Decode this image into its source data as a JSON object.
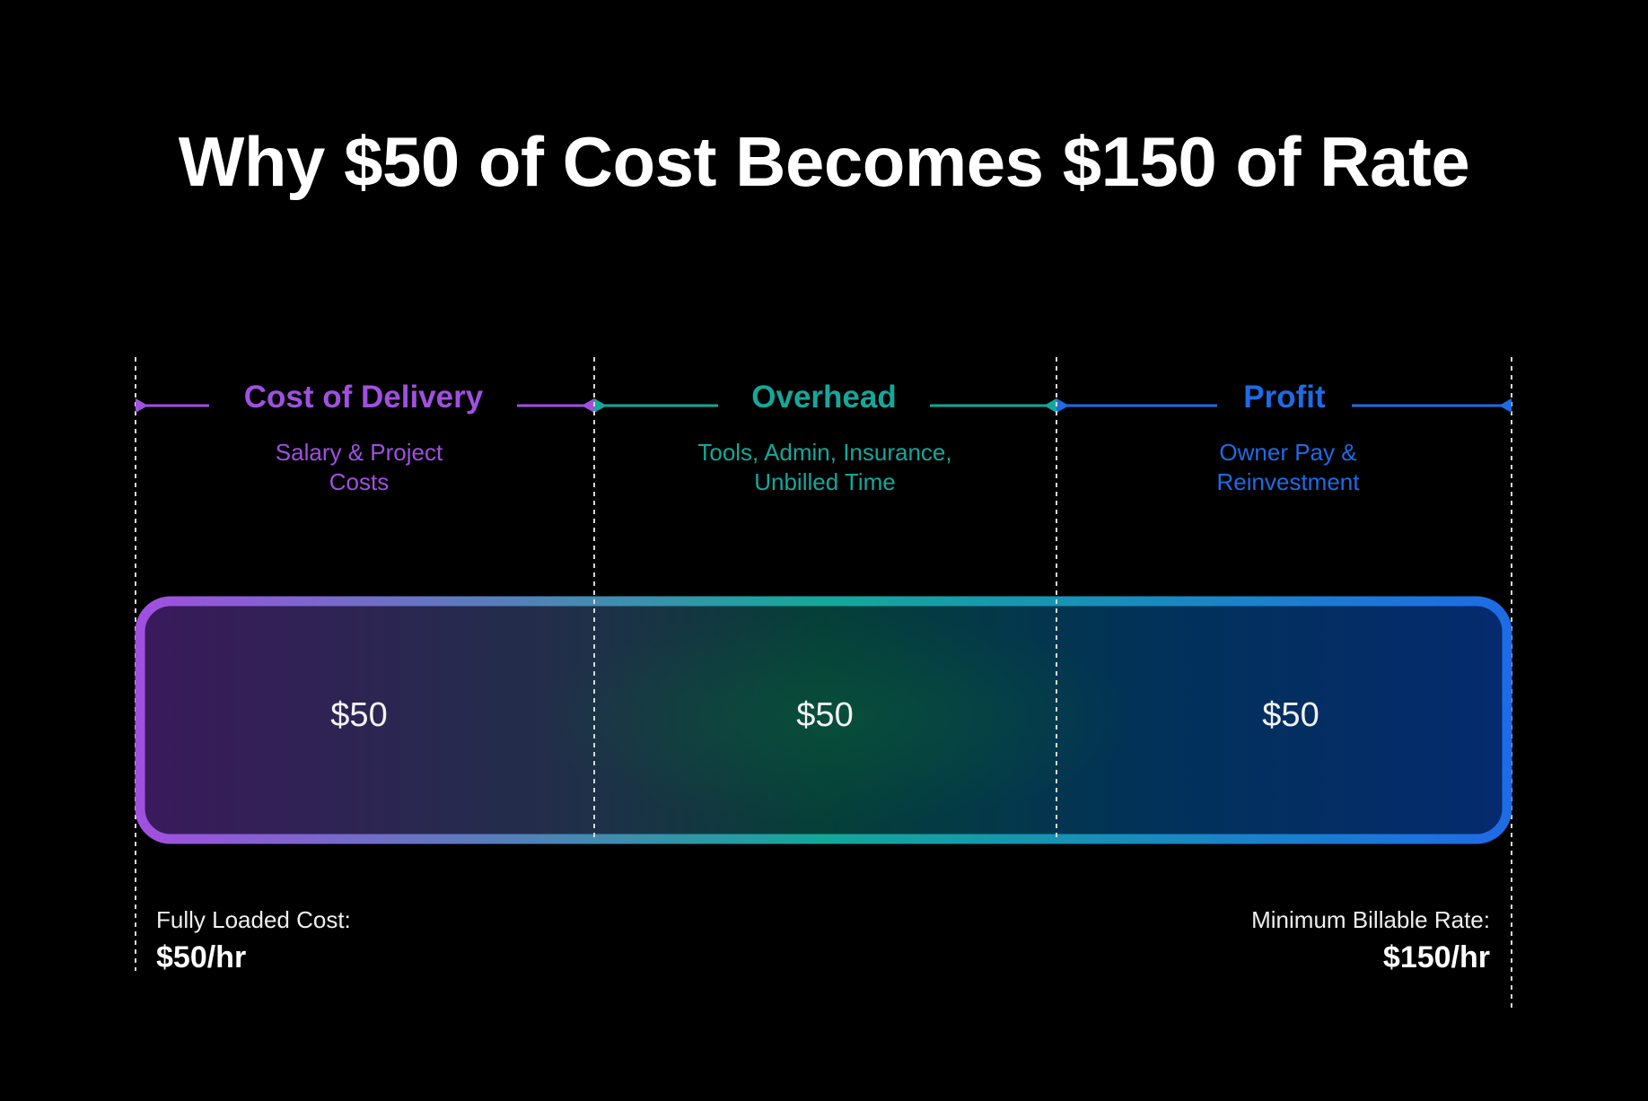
{
  "title": "Why $50 of Cost Becomes $150 of Rate",
  "colors": {
    "background": "#000000",
    "delivery": "#a050e0",
    "overhead": "#14a89a",
    "profit": "#1e6be6"
  },
  "segments": [
    {
      "title": "Cost of Delivery",
      "subtitle": [
        "Salary & Project",
        "Costs"
      ],
      "value": "$50"
    },
    {
      "title": "Overhead",
      "subtitle": [
        "Tools, Admin, Insurance,",
        "Unbilled Time"
      ],
      "value": "$50"
    },
    {
      "title": "Profit",
      "subtitle": [
        "Owner Pay &",
        "Reinvestment"
      ],
      "value": "$50"
    }
  ],
  "footer": {
    "left": {
      "label": "Fully Loaded Cost:",
      "value": "$50/hr"
    },
    "right": {
      "label": "Minimum Billable Rate:",
      "value": "$150/hr"
    }
  }
}
